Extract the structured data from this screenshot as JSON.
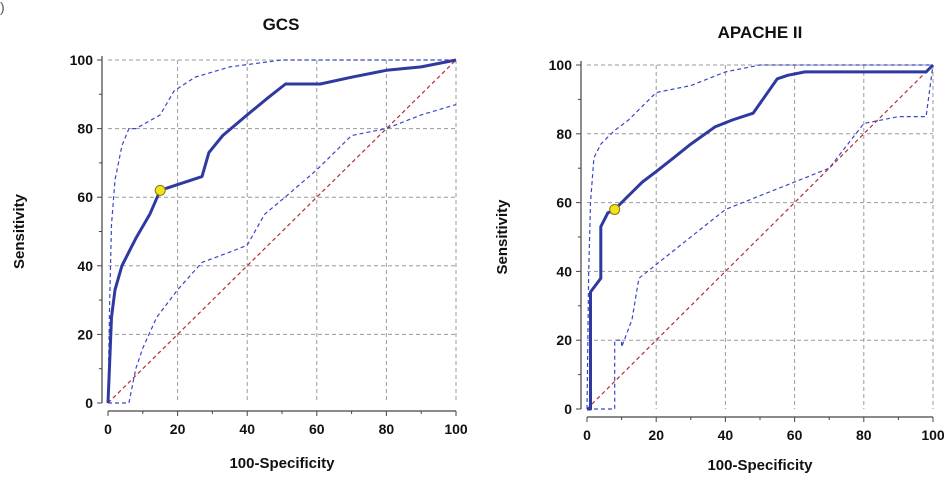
{
  "figure": {
    "corner_mark": ")",
    "colors": {
      "roc": "#2e3a9f",
      "ci": "#3a46c8",
      "diagonal": "#b03030",
      "grid": "#9a9a9a",
      "point_fill": "#f2e21a",
      "point_stroke": "#8a7a00"
    }
  },
  "chart_data": [
    {
      "type": "line",
      "title": "GCS",
      "xlabel": "100-Specificity",
      "ylabel": "Sensitivity",
      "xlim": [
        0,
        100
      ],
      "ylim": [
        0,
        100
      ],
      "xticks": [
        "0",
        "20",
        "40",
        "60",
        "80",
        "100"
      ],
      "yticks": [
        "0",
        "20",
        "40",
        "60",
        "80",
        "100"
      ],
      "grid": true,
      "series": [
        {
          "role": "roc",
          "x": [
            0,
            0.5,
            1,
            2,
            4,
            8,
            12,
            15,
            27,
            29,
            33,
            40,
            46,
            51,
            61,
            70,
            80,
            90,
            100
          ],
          "y": [
            0,
            12,
            25,
            33,
            40,
            48,
            55,
            62,
            66,
            73,
            78,
            84,
            89,
            93,
            93,
            95,
            97,
            98,
            100
          ]
        },
        {
          "role": "ci-upper",
          "x": [
            0,
            0.5,
            1,
            2,
            4,
            6,
            8,
            15,
            19,
            25,
            35,
            50,
            70,
            100
          ],
          "y": [
            0,
            30,
            52,
            65,
            75,
            80,
            80,
            84,
            91,
            95,
            98,
            100,
            100,
            100
          ]
        },
        {
          "role": "ci-lower",
          "x": [
            0,
            4,
            6,
            8,
            10,
            14,
            17,
            20,
            27,
            35,
            40,
            45,
            52,
            60,
            70,
            80,
            90,
            100
          ],
          "y": [
            0,
            0,
            0,
            10,
            16,
            25,
            29,
            33,
            41,
            44,
            46,
            55,
            61,
            68,
            78,
            80,
            84,
            87
          ]
        },
        {
          "role": "diagonal",
          "x": [
            0,
            100
          ],
          "y": [
            0,
            100
          ]
        }
      ],
      "cutoff_point": {
        "x": 15,
        "y": 62
      }
    },
    {
      "type": "line",
      "title": "APACHE II",
      "xlabel": "100-Specificity",
      "ylabel": "Sensitivity",
      "xlim": [
        0,
        100
      ],
      "ylim": [
        0,
        100
      ],
      "xticks": [
        "0",
        "20",
        "40",
        "60",
        "80",
        "100"
      ],
      "yticks": [
        "0",
        "20",
        "40",
        "60",
        "80",
        "100"
      ],
      "grid": true,
      "series": [
        {
          "role": "roc",
          "x": [
            0,
            1,
            1,
            4,
            4,
            6,
            8,
            12,
            16,
            20,
            25,
            30,
            37,
            42,
            48,
            55,
            58,
            63,
            70,
            80,
            90,
            98,
            100
          ],
          "y": [
            0,
            0,
            34,
            38,
            53,
            57,
            58,
            62,
            66,
            69,
            73,
            77,
            82,
            84,
            86,
            96,
            97,
            98,
            98,
            98,
            98,
            98,
            100
          ]
        },
        {
          "role": "ci-upper",
          "x": [
            0,
            0.5,
            1,
            2,
            4,
            8,
            12,
            20,
            30,
            40,
            50,
            60,
            70,
            80,
            90,
            100
          ],
          "y": [
            0,
            40,
            60,
            73,
            77,
            81,
            84,
            92,
            94,
            98,
            100,
            100,
            100,
            100,
            100,
            100
          ]
        },
        {
          "role": "ci-lower",
          "x": [
            0,
            5,
            8,
            8,
            10,
            10,
            13,
            15,
            20,
            30,
            40,
            50,
            60,
            70,
            80,
            90,
            98,
            100
          ],
          "y": [
            0,
            0,
            0,
            20,
            20,
            18,
            26,
            38,
            42,
            50,
            58,
            62,
            66,
            70,
            83,
            85,
            85,
            100
          ]
        },
        {
          "role": "diagonal",
          "x": [
            0,
            100
          ],
          "y": [
            0,
            100
          ]
        }
      ],
      "cutoff_point": {
        "x": 8,
        "y": 58
      }
    }
  ]
}
